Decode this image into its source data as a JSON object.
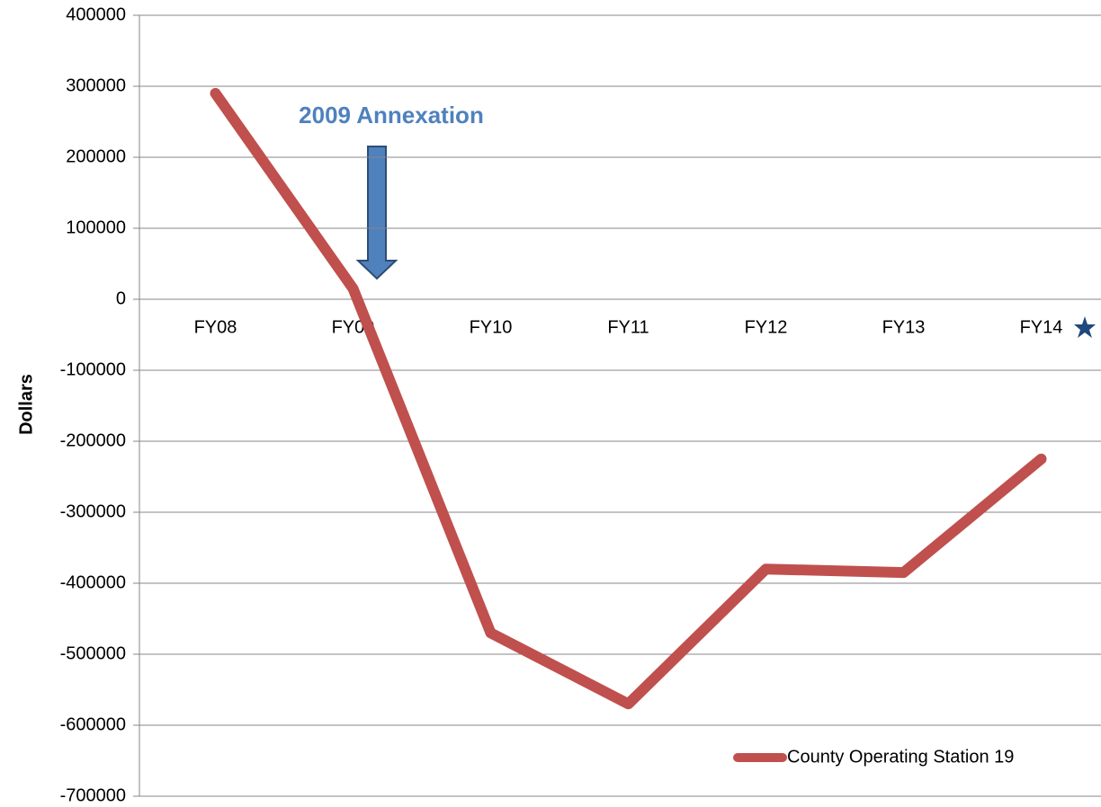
{
  "chart_data": {
    "type": "line",
    "y_label": "Dollars",
    "annotation": "2009 Annexation",
    "categories": [
      "FY08",
      "FY09",
      "FY10",
      "FY11",
      "FY12",
      "FY13",
      "FY14"
    ],
    "series": [
      {
        "name": "County Operating Station 19",
        "color": "#c0504d",
        "values": [
          290000,
          15000,
          -470000,
          -570000,
          -380000,
          -385000,
          -225000
        ]
      }
    ],
    "ylim": [
      -700000,
      400000
    ],
    "yticks": [
      -700000,
      -600000,
      -500000,
      -400000,
      -300000,
      -200000,
      -100000,
      0,
      100000,
      200000,
      300000,
      400000
    ],
    "grid": true,
    "legend": "lower right"
  }
}
